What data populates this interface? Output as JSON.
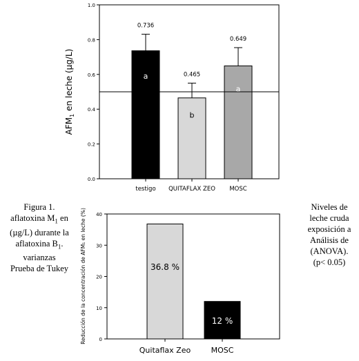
{
  "charts": [
    {
      "type": "bar",
      "ylabel_main": "AFM",
      "ylabel_sub": "1",
      "ylabel_rest": " en leche (µg/L)",
      "ylim": [
        0,
        1.0
      ],
      "yticks": [
        "0.0",
        "0.2",
        "0.4",
        "0.6",
        "0.8",
        "1.0"
      ],
      "reference_line": 0.5,
      "categories": [
        "testigo",
        "QUITAFLAX ZEO",
        "MOSC"
      ],
      "values": [
        0.736,
        0.465,
        0.649
      ],
      "errors": [
        0.095,
        0.085,
        0.105
      ],
      "value_labels": [
        "0.736",
        "0.465",
        "0.649"
      ],
      "letters": [
        "a",
        "b",
        "a"
      ],
      "colors": [
        "#000000",
        "#d8d8d8",
        "#a8a8a8"
      ],
      "letter_colors": [
        "#ffffff",
        "#000000",
        "#ffffff"
      ]
    },
    {
      "type": "bar",
      "ylabel": "Reducción de la concentración de AFM₁ en leche (%)",
      "ylim": [
        0,
        40
      ],
      "yticks": [
        "0",
        "10",
        "20",
        "30",
        "40"
      ],
      "categories": [
        "Quitaflax Zeo",
        "MOSC"
      ],
      "values": [
        36.8,
        12
      ],
      "value_labels": [
        "36.8 %",
        "12 %"
      ],
      "colors": [
        "#d8d8d8",
        "#000000"
      ],
      "label_colors": [
        "#000000",
        "#ffffff"
      ]
    }
  ],
  "caption_left": [
    "Figura 1.",
    "aflatoxina M",
    "(µg/L) durante la",
    "aflatoxina B",
    "varianzas",
    "Prueba de Tukey"
  ],
  "caption_left_sub": [
    "",
    "1",
    "",
    "1",
    "",
    ""
  ],
  "caption_left_tail": [
    "",
    " en",
    "",
    ".",
    "",
    ""
  ],
  "caption_right": [
    "Niveles de",
    "leche cruda",
    "exposición a",
    "Análisis de",
    "(ANOVA).",
    "(p< 0.05)"
  ]
}
